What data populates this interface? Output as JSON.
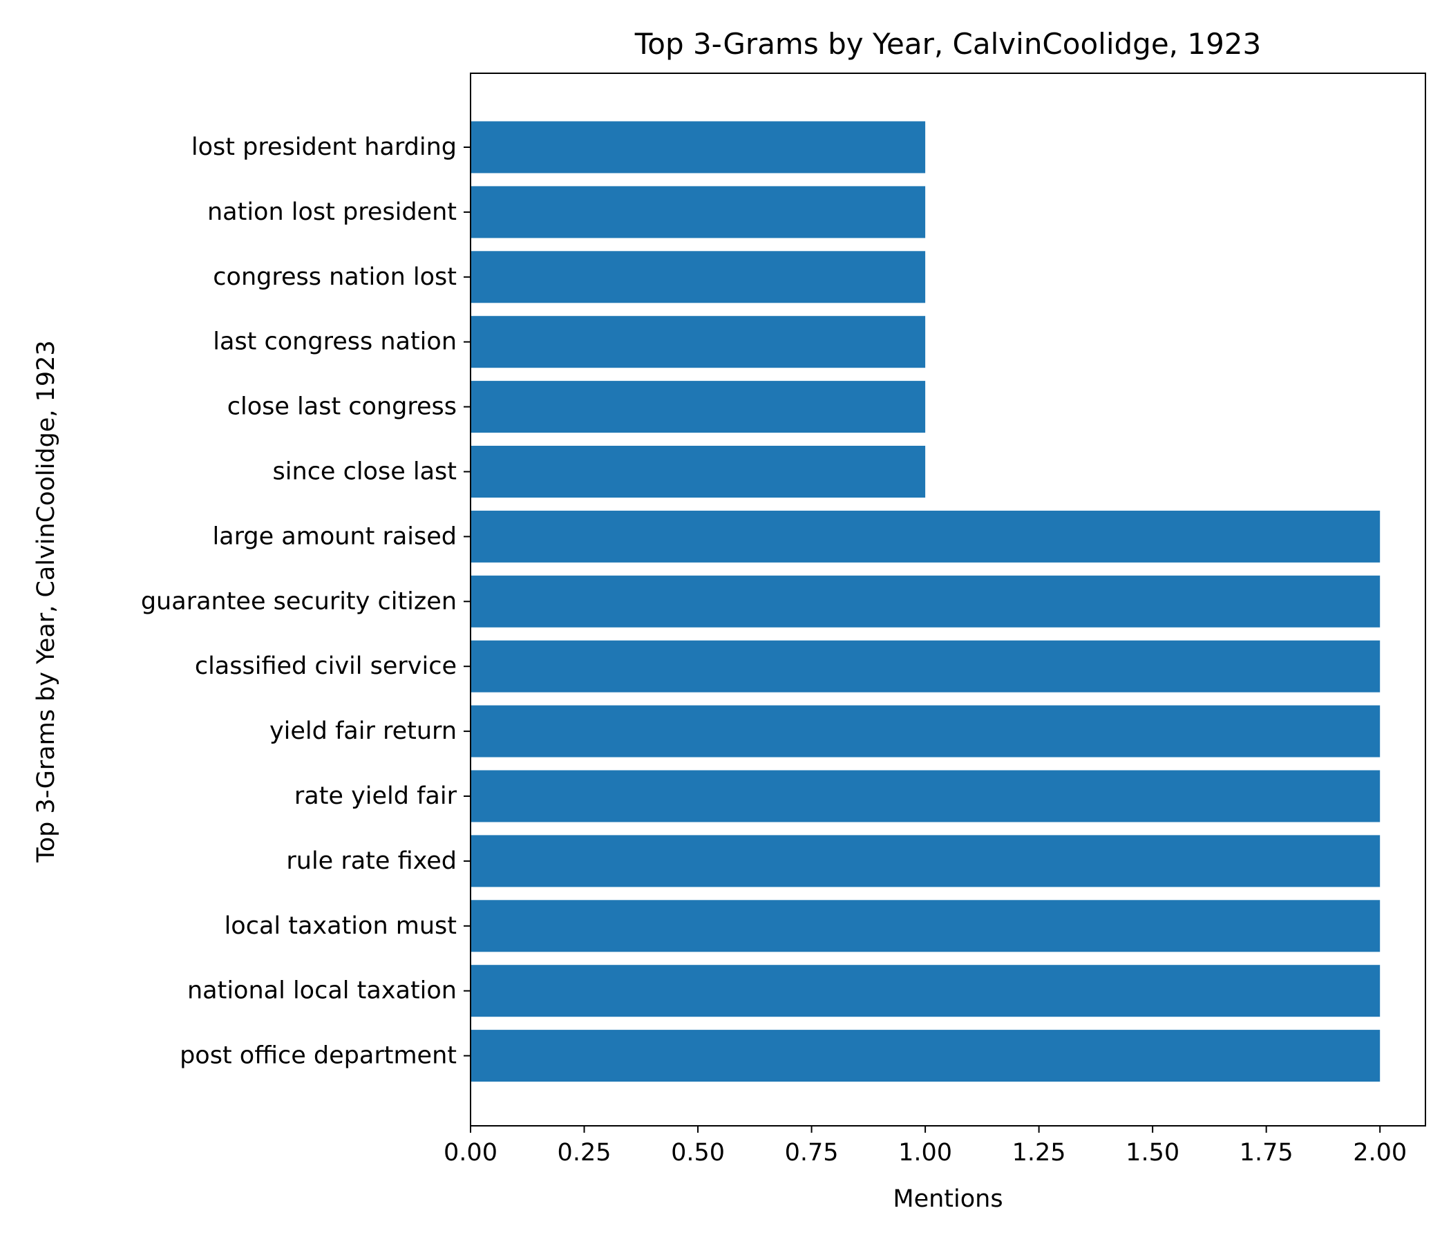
{
  "chart_data": {
    "type": "bar",
    "orientation": "horizontal",
    "title": "Top 3-Grams by Year, CalvinCoolidge, 1923",
    "xlabel": "Mentions",
    "ylabel": "Top 3-Grams by Year, CalvinCoolidge, 1923",
    "xlim": [
      0,
      2.1
    ],
    "xticks": [
      "0.00",
      "0.25",
      "0.50",
      "0.75",
      "1.00",
      "1.25",
      "1.50",
      "1.75",
      "2.00"
    ],
    "xtick_values": [
      0,
      0.25,
      0.5,
      0.75,
      1.0,
      1.25,
      1.5,
      1.75,
      2.0
    ],
    "categories": [
      "lost president harding",
      "nation lost president",
      "congress nation lost",
      "last congress nation",
      "close last congress",
      "since close last",
      "large amount raised",
      "guarantee security citizen",
      "classified civil service",
      "yield fair return",
      "rate yield fair",
      "rule rate fixed",
      "local taxation must",
      "national local taxation",
      "post office department"
    ],
    "values": [
      1,
      1,
      1,
      1,
      1,
      1,
      2,
      2,
      2,
      2,
      2,
      2,
      2,
      2,
      2
    ],
    "bar_color": "#1f77b4",
    "grid": false,
    "legend": "none"
  }
}
